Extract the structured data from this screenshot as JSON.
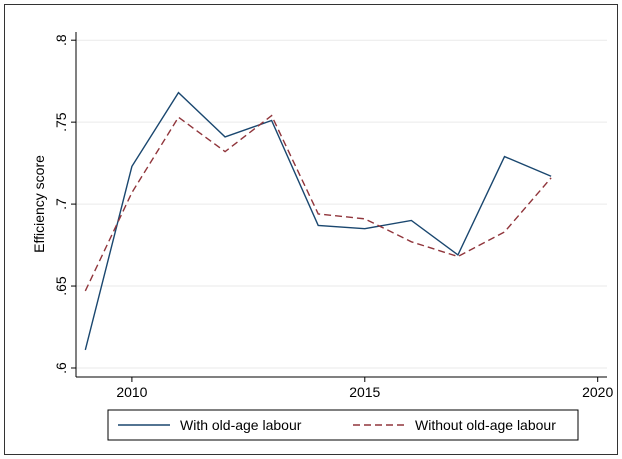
{
  "chart_data": {
    "type": "line",
    "y_label": "Efficiency score",
    "x": [
      2009,
      2010,
      2011,
      2012,
      2013,
      2014,
      2015,
      2016,
      2017,
      2018,
      2019
    ],
    "series": [
      {
        "name": "With old-age labour",
        "color": "#1a476f",
        "dash": "solid",
        "values": [
          0.611,
          0.723,
          0.768,
          0.741,
          0.751,
          0.687,
          0.685,
          0.69,
          0.669,
          0.729,
          0.717
        ]
      },
      {
        "name": "Without old-age labour",
        "color": "#90353b",
        "dash": "dashed",
        "values": [
          0.647,
          0.707,
          0.753,
          0.732,
          0.754,
          0.694,
          0.691,
          0.677,
          0.668,
          0.683,
          0.716
        ]
      }
    ],
    "xlim": [
      2008.8,
      2020.2
    ],
    "xticks": [
      2010,
      2015,
      2020
    ],
    "ylim": [
      0.5945,
      0.805
    ],
    "yticks": [
      {
        "value": 0.6,
        "label": ".6"
      },
      {
        "value": 0.65,
        "label": ".65"
      },
      {
        "value": 0.7,
        "label": ".7"
      },
      {
        "value": 0.75,
        "label": ".75"
      },
      {
        "value": 0.8,
        "label": ".8"
      }
    ],
    "grid": true,
    "legend": "bottom"
  }
}
